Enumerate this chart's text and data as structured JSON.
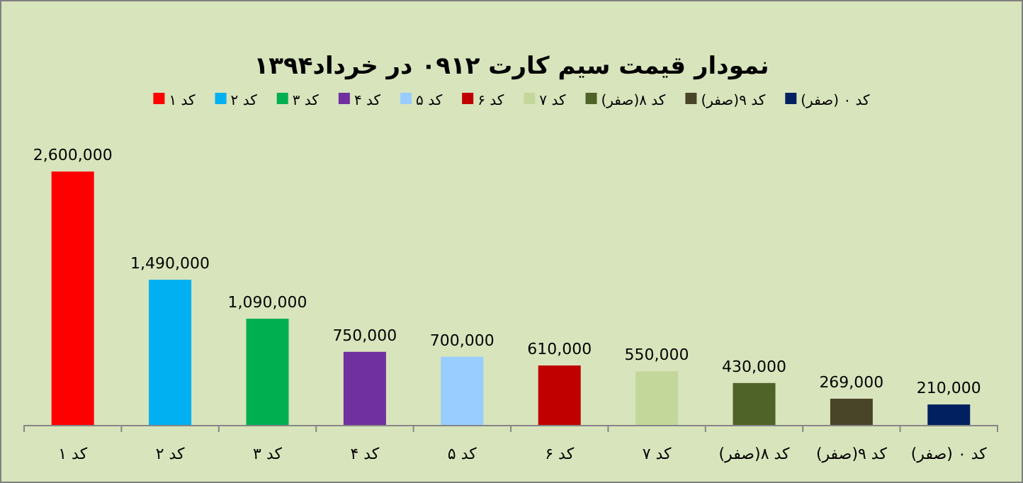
{
  "chart_data": {
    "type": "bar",
    "title": "نمودار قیمت سیم کارت ۰۹۱۲ در خرداد۱۳۹۴",
    "categories": [
      "کد ۱",
      "کد ۲",
      "کد ۳",
      "کد ۴",
      "کد ۵",
      "کد ۶",
      "کد ۷",
      "کد ۸(صفر)",
      "کد ۹(صفر)",
      "کد ۰ (صفر)"
    ],
    "stacked": true,
    "series": [
      {
        "name": "کد ۱",
        "color": "#ff0000",
        "values": [
          2600000,
          null,
          null,
          null,
          null,
          null,
          null,
          null,
          null,
          null
        ],
        "value_labels": [
          "2,600,000",
          null,
          null,
          null,
          null,
          null,
          null,
          null,
          null,
          null
        ]
      },
      {
        "name": "کد ۲",
        "color": "#00b0f0",
        "values": [
          null,
          1490000,
          null,
          null,
          null,
          null,
          null,
          null,
          null,
          null
        ],
        "value_labels": [
          null,
          "1,490,000",
          null,
          null,
          null,
          null,
          null,
          null,
          null,
          null
        ]
      },
      {
        "name": "کد ۳",
        "color": "#00b050",
        "values": [
          null,
          null,
          1090000,
          null,
          null,
          null,
          null,
          null,
          null,
          null
        ],
        "value_labels": [
          null,
          null,
          "1,090,000",
          null,
          null,
          null,
          null,
          null,
          null,
          null
        ]
      },
      {
        "name": "کد ۴",
        "color": "#7030a0",
        "values": [
          null,
          null,
          null,
          750000,
          null,
          null,
          null,
          null,
          null,
          null
        ],
        "value_labels": [
          null,
          null,
          null,
          "750,000",
          null,
          null,
          null,
          null,
          null,
          null
        ]
      },
      {
        "name": "کد ۵",
        "color": "#99ccff",
        "values": [
          null,
          null,
          null,
          null,
          700000,
          null,
          null,
          null,
          null,
          null
        ],
        "value_labels": [
          null,
          null,
          null,
          null,
          "700,000",
          null,
          null,
          null,
          null,
          null
        ]
      },
      {
        "name": "کد ۶",
        "color": "#c00000",
        "values": [
          null,
          null,
          null,
          null,
          null,
          610000,
          null,
          null,
          null,
          null
        ],
        "value_labels": [
          null,
          null,
          null,
          null,
          null,
          "610,000",
          null,
          null,
          null,
          null
        ]
      },
      {
        "name": "کد ۷",
        "color": "#c4d79b",
        "values": [
          null,
          null,
          null,
          null,
          null,
          null,
          550000,
          null,
          null,
          null
        ],
        "value_labels": [
          null,
          null,
          null,
          null,
          null,
          null,
          "550,000",
          null,
          null,
          null
        ]
      },
      {
        "name": "کد ۸(صفر)",
        "color": "#4f6228",
        "values": [
          null,
          null,
          null,
          null,
          null,
          null,
          null,
          430000,
          null,
          null
        ],
        "value_labels": [
          null,
          null,
          null,
          null,
          null,
          null,
          null,
          "430,000",
          null,
          null
        ]
      },
      {
        "name": "کد ۹(صفر)",
        "color": "#494529",
        "values": [
          null,
          null,
          null,
          null,
          null,
          null,
          null,
          null,
          269000,
          null
        ],
        "value_labels": [
          null,
          null,
          null,
          null,
          null,
          null,
          null,
          null,
          "269,000",
          null
        ]
      },
      {
        "name": "کد ۰ (صفر)",
        "color": "#002060",
        "values": [
          null,
          null,
          null,
          null,
          null,
          null,
          null,
          null,
          null,
          210000
        ],
        "value_labels": [
          null,
          null,
          null,
          null,
          null,
          null,
          null,
          null,
          null,
          "210,000"
        ]
      }
    ],
    "legend": "top",
    "tick_labels": "x"
  }
}
